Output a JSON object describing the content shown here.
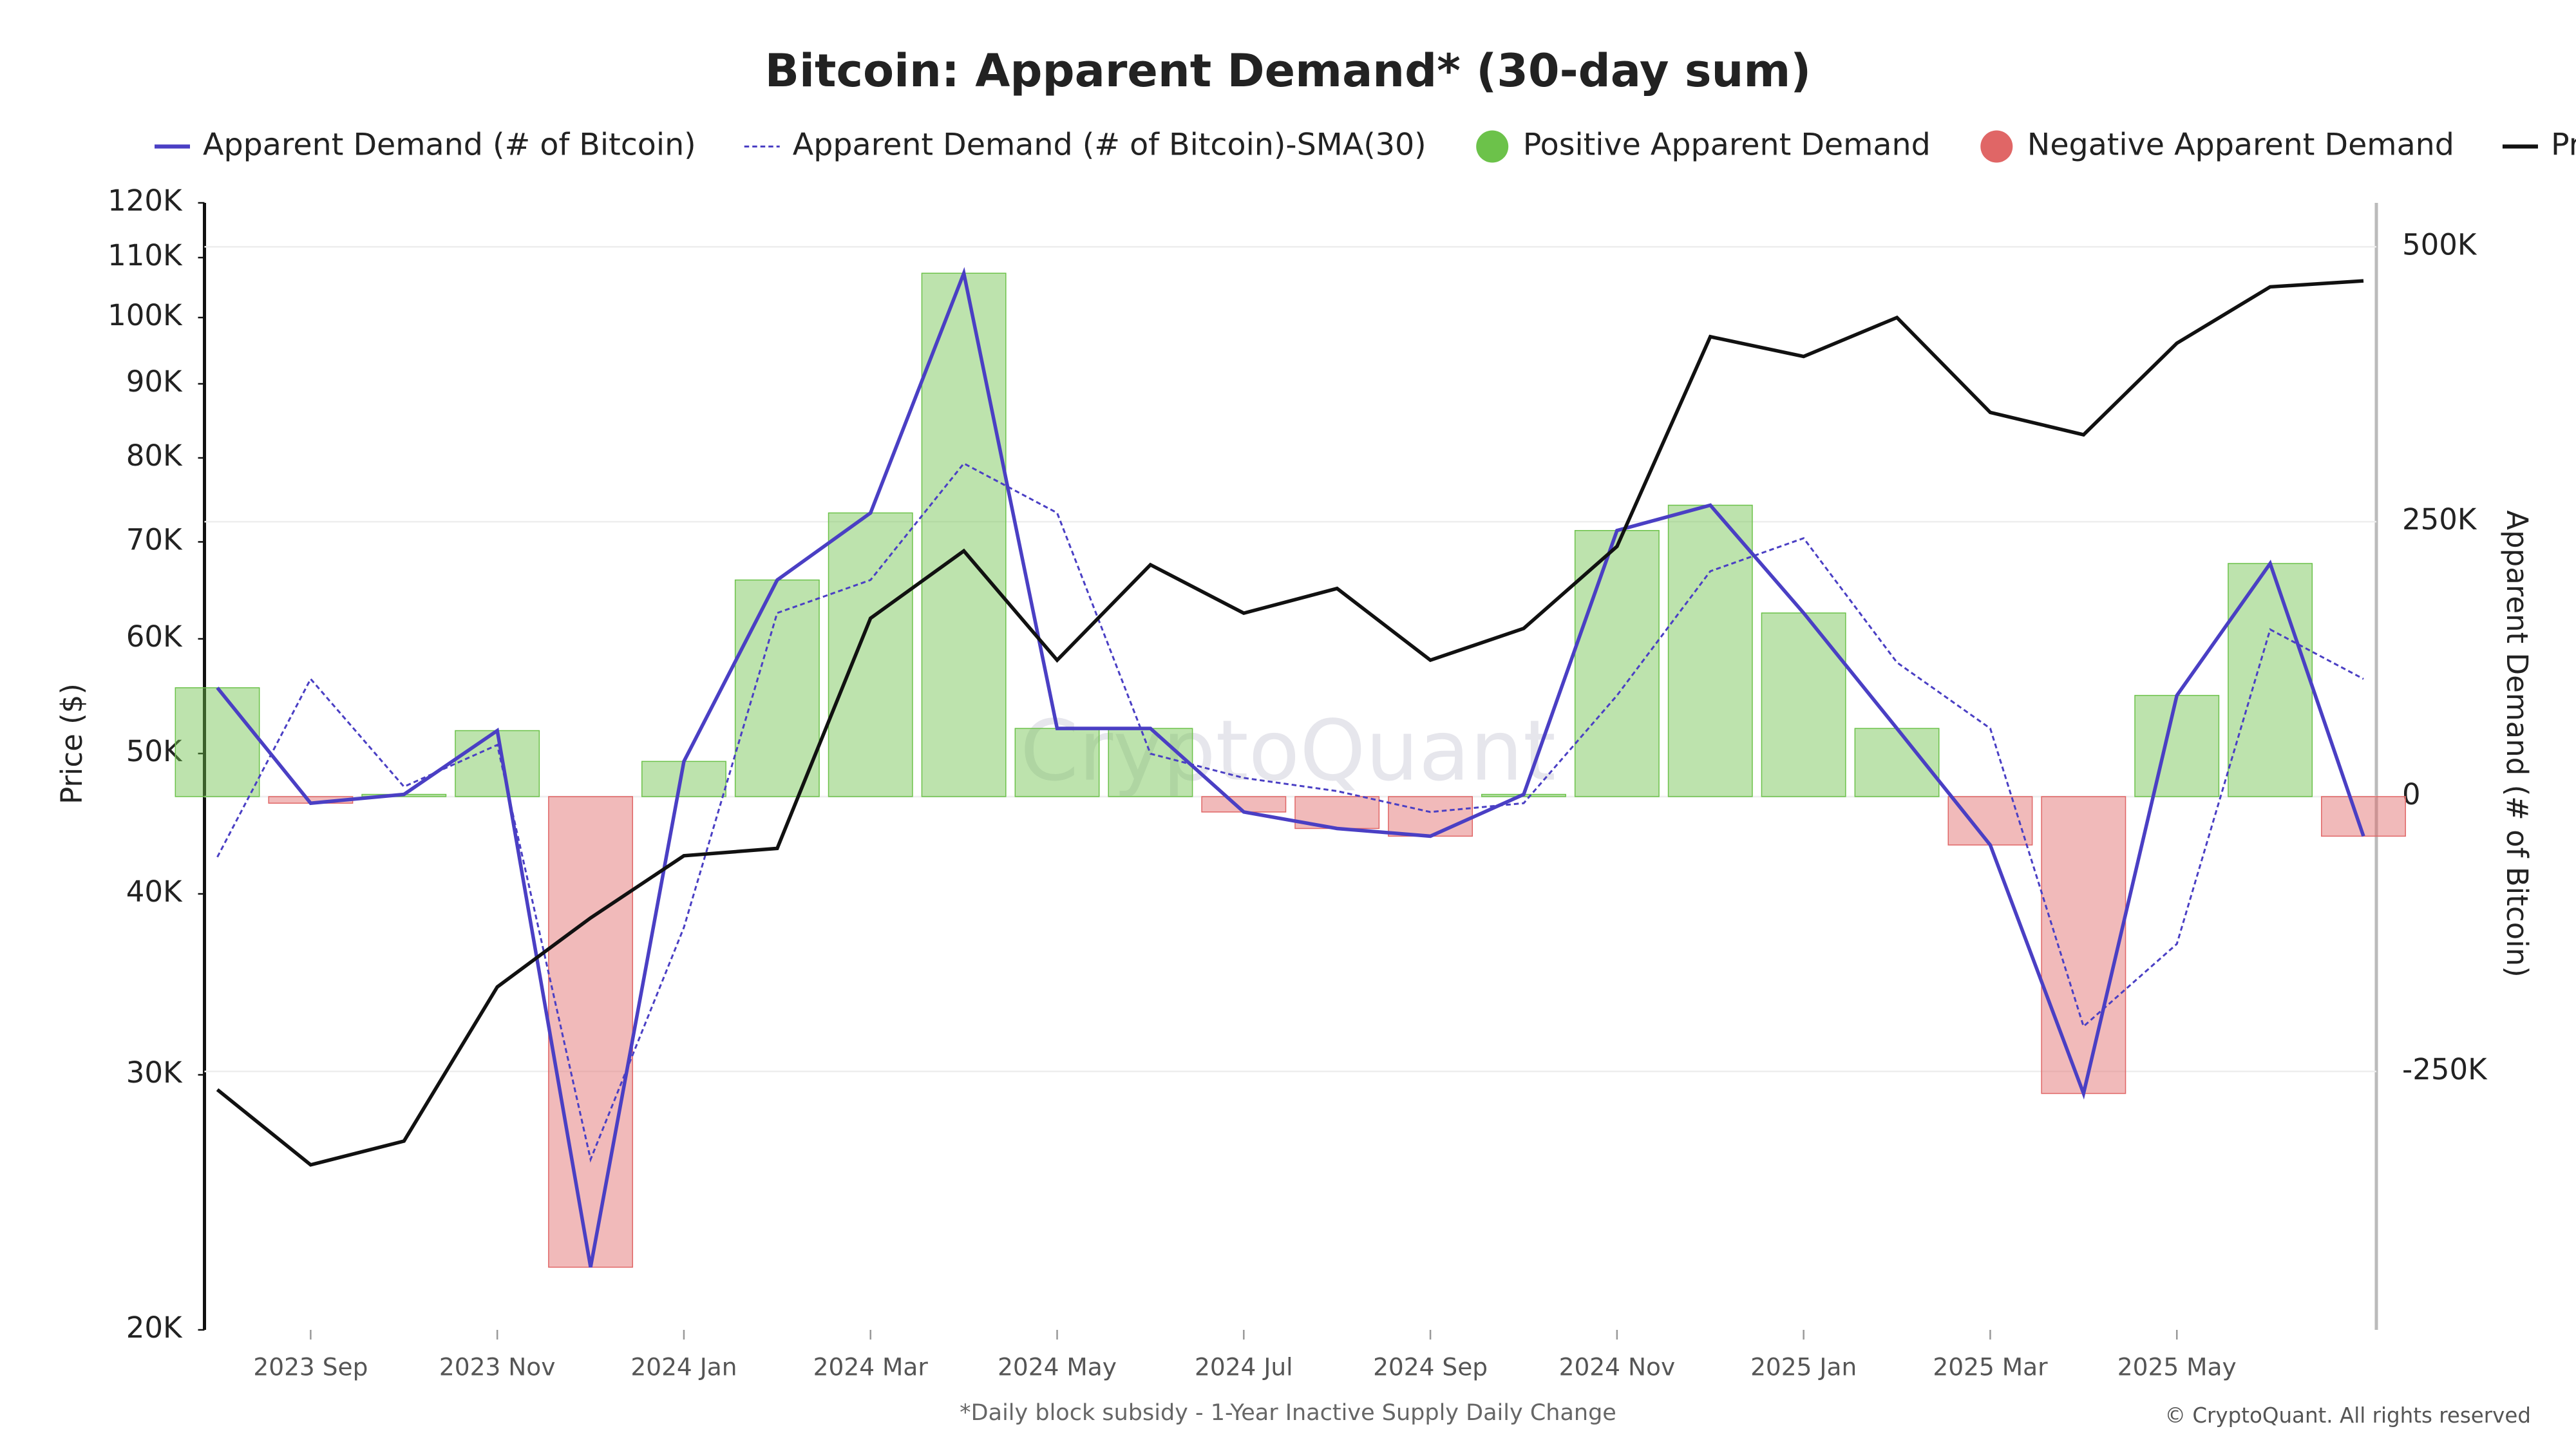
{
  "chart_data": {
    "type": "combo",
    "title": "Bitcoin: Apparent Demand* (30-day sum)",
    "footnote": "*Daily block subsidy - 1-Year Inactive Supply Daily Change",
    "credit": "© CryptoQuant. All rights reserved",
    "watermark": "CryptoQuant",
    "y_label": "Price ($)",
    "y2_label": "Apparent Demand (# of Bitcoin)",
    "x": [
      "2023-08",
      "2023-09",
      "2023-10",
      "2023-11",
      "2023-12",
      "2024-01",
      "2024-02",
      "2024-03",
      "2024-04",
      "2024-05",
      "2024-06",
      "2024-07",
      "2024-08",
      "2024-09",
      "2024-10",
      "2024-11",
      "2024-12",
      "2025-01",
      "2025-02",
      "2025-03",
      "2025-04",
      "2025-05",
      "2025-06",
      "2025-07"
    ],
    "xlim": [
      "2023-08",
      "2025-07"
    ],
    "xticks": [
      {
        "value": "2023-09",
        "label": "2023 Sep"
      },
      {
        "value": "2023-11",
        "label": "2023 Nov"
      },
      {
        "value": "2024-01",
        "label": "2024 Jan"
      },
      {
        "value": "2024-03",
        "label": "2024 Mar"
      },
      {
        "value": "2024-05",
        "label": "2024 May"
      },
      {
        "value": "2024-07",
        "label": "2024 Jul"
      },
      {
        "value": "2024-09",
        "label": "2024 Sep"
      },
      {
        "value": "2024-11",
        "label": "2024 Nov"
      },
      {
        "value": "2025-01",
        "label": "2025 Jan"
      },
      {
        "value": "2025-03",
        "label": "2025 Mar"
      },
      {
        "value": "2025-05",
        "label": "2025 May"
      }
    ],
    "ylim": [
      20000,
      120000
    ],
    "y_log": true,
    "yticks": [
      {
        "value": 20000,
        "label": "20K"
      },
      {
        "value": 30000,
        "label": "30K"
      },
      {
        "value": 40000,
        "label": "40K"
      },
      {
        "value": 50000,
        "label": "50K"
      },
      {
        "value": 60000,
        "label": "60K"
      },
      {
        "value": 70000,
        "label": "70K"
      },
      {
        "value": 80000,
        "label": "80K"
      },
      {
        "value": 90000,
        "label": "90K"
      },
      {
        "value": 100000,
        "label": "100K"
      },
      {
        "value": 110000,
        "label": "110K"
      },
      {
        "value": 120000,
        "label": "120K"
      }
    ],
    "y2lim": [
      -485000,
      540000
    ],
    "y2ticks": [
      {
        "value": -250000,
        "label": "-250K"
      },
      0,
      {
        "value": 250000,
        "label": "250K"
      },
      {
        "value": 500000,
        "label": "500K"
      }
    ],
    "grid": true,
    "sign_colors": [
      {
        "name": "Positive Apparent Demand",
        "color": "#6cc24a"
      },
      {
        "name": "Negative Apparent Demand",
        "color": "#e06666"
      }
    ],
    "series": [
      {
        "name": "Apparent Demand (# of Bitcoin)",
        "color": "#4a3fc4",
        "axis": "y2",
        "style": "solid",
        "values": [
          99000,
          -6000,
          2000,
          60000,
          -428000,
          32000,
          197000,
          258000,
          476000,
          62000,
          62000,
          -14000,
          -29000,
          -36000,
          2000,
          242000,
          265000,
          167000,
          62000,
          -44000,
          -270000,
          92000,
          212000,
          -36000
        ]
      },
      {
        "name": "Apparent Demand (# of Bitcoin)-SMA(30)",
        "color": "#4a3fc4",
        "axis": "y2",
        "style": "dotted",
        "values": [
          -55000,
          107000,
          9000,
          47000,
          -330000,
          -119000,
          167000,
          197000,
          303000,
          258000,
          39000,
          17000,
          5000,
          -14000,
          -6000,
          92000,
          205000,
          235000,
          122000,
          62000,
          -209000,
          -134000,
          152000,
          107000
        ]
      },
      {
        "name": "Price",
        "color": "#111111",
        "axis": "y",
        "style": "solid",
        "values": [
          29300,
          26000,
          27000,
          34500,
          38500,
          42500,
          43000,
          62000,
          69000,
          58000,
          67500,
          62500,
          65000,
          58000,
          61000,
          69500,
          97000,
          94000,
          100000,
          86000,
          83000,
          96000,
          105000,
          106000
        ]
      }
    ]
  }
}
